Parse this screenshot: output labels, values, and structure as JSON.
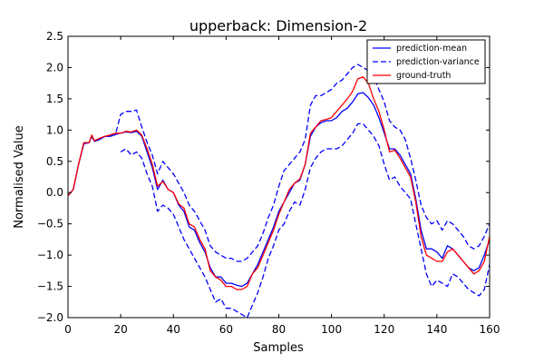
{
  "chart_data": {
    "type": "line",
    "title": "upperback: Dimension-2",
    "xlabel": "Samples",
    "ylabel": "Normalised Value",
    "xlim": [
      0,
      160
    ],
    "ylim": [
      -2.0,
      2.5
    ],
    "xticks": [
      0,
      20,
      40,
      60,
      80,
      100,
      120,
      140,
      160
    ],
    "yticks": [
      -2.0,
      -1.5,
      -1.0,
      -0.5,
      0.0,
      0.5,
      1.0,
      1.5,
      2.0,
      2.5
    ],
    "grid": false,
    "legend_position": "top-right",
    "series": [
      {
        "name": "prediction-mean",
        "color": "#0000ff",
        "style": "solid",
        "x": [
          0,
          2,
          4,
          6,
          8,
          9,
          10,
          12,
          14,
          16,
          18,
          20,
          22,
          24,
          26,
          28,
          30,
          32,
          34,
          36,
          38,
          40,
          42,
          44,
          46,
          48,
          50,
          52,
          54,
          56,
          58,
          60,
          62,
          64,
          66,
          68,
          70,
          72,
          74,
          76,
          78,
          80,
          82,
          84,
          86,
          88,
          90,
          92,
          94,
          96,
          98,
          100,
          102,
          104,
          106,
          108,
          110,
          112,
          114,
          116,
          118,
          120,
          122,
          124,
          126,
          128,
          130,
          132,
          134,
          136,
          138,
          140,
          142,
          144,
          146,
          148,
          150,
          152,
          154,
          156,
          158,
          160
        ],
        "values": [
          -0.05,
          0.05,
          0.45,
          0.78,
          0.8,
          0.9,
          0.82,
          0.85,
          0.9,
          0.9,
          0.93,
          0.95,
          0.97,
          0.96,
          0.98,
          0.9,
          0.65,
          0.4,
          0.05,
          0.2,
          0.05,
          0.0,
          -0.2,
          -0.3,
          -0.55,
          -0.6,
          -0.8,
          -0.95,
          -1.2,
          -1.35,
          -1.35,
          -1.45,
          -1.45,
          -1.48,
          -1.5,
          -1.45,
          -1.3,
          -1.15,
          -0.95,
          -0.75,
          -0.55,
          -0.3,
          -0.15,
          0.0,
          0.15,
          0.2,
          0.45,
          0.9,
          1.05,
          1.12,
          1.15,
          1.15,
          1.2,
          1.3,
          1.35,
          1.45,
          1.58,
          1.6,
          1.52,
          1.4,
          1.2,
          0.95,
          0.7,
          0.7,
          0.6,
          0.45,
          0.3,
          -0.1,
          -0.6,
          -0.9,
          -0.9,
          -0.95,
          -1.05,
          -0.85,
          -0.9,
          -1.0,
          -1.1,
          -1.2,
          -1.25,
          -1.2,
          -1.0,
          -0.75
        ]
      },
      {
        "name": "prediction-variance",
        "color": "#0000ff",
        "style": "dashed",
        "x": [
          0,
          2,
          4,
          6,
          8,
          9,
          10,
          12,
          14,
          16,
          18,
          20,
          22,
          24,
          26,
          28,
          30,
          32,
          34,
          36,
          38,
          40,
          42,
          44,
          46,
          48,
          50,
          52,
          54,
          56,
          58,
          60,
          62,
          64,
          66,
          68,
          70,
          72,
          74,
          76,
          78,
          80,
          82,
          84,
          86,
          88,
          90,
          92,
          94,
          96,
          98,
          100,
          102,
          104,
          106,
          108,
          110,
          112,
          114,
          116,
          118,
          120,
          122,
          124,
          126,
          128,
          130,
          132,
          134,
          136,
          138,
          140,
          142,
          144,
          146,
          148,
          150,
          152,
          154,
          156,
          158,
          160
        ],
        "values": [
          -0.05,
          0.05,
          0.45,
          0.78,
          0.8,
          0.9,
          0.82,
          0.85,
          0.9,
          0.9,
          0.93,
          1.25,
          1.3,
          1.3,
          1.32,
          1.05,
          0.8,
          0.6,
          0.3,
          0.5,
          0.4,
          0.3,
          0.15,
          0.0,
          -0.2,
          -0.3,
          -0.45,
          -0.6,
          -0.85,
          -0.95,
          -1.0,
          -1.05,
          -1.05,
          -1.1,
          -1.1,
          -1.05,
          -0.95,
          -0.85,
          -0.65,
          -0.4,
          -0.2,
          0.1,
          0.35,
          0.45,
          0.55,
          0.65,
          0.85,
          1.4,
          1.55,
          1.55,
          1.6,
          1.65,
          1.75,
          1.8,
          1.9,
          2.0,
          2.05,
          2.0,
          1.95,
          1.85,
          1.65,
          1.45,
          1.15,
          1.05,
          1.0,
          0.85,
          0.55,
          0.2,
          -0.2,
          -0.4,
          -0.5,
          -0.45,
          -0.6,
          -0.45,
          -0.5,
          -0.6,
          -0.7,
          -0.85,
          -0.9,
          -0.85,
          -0.7,
          -0.5
        ]
      },
      {
        "name": "_variance-lower",
        "color": "#0000ff",
        "style": "dashed",
        "x": [
          20,
          22,
          24,
          26,
          28,
          30,
          32,
          34,
          36,
          38,
          40,
          42,
          44,
          46,
          48,
          50,
          52,
          54,
          56,
          58,
          60,
          62,
          64,
          66,
          68,
          70,
          72,
          74,
          76,
          78,
          80,
          82,
          84,
          86,
          88,
          90,
          92,
          94,
          96,
          98,
          100,
          102,
          104,
          106,
          108,
          110,
          112,
          114,
          116,
          118,
          120,
          122,
          124,
          126,
          128,
          130,
          132,
          134,
          136,
          138,
          140,
          142,
          144,
          146,
          148,
          150,
          152,
          154,
          156,
          158,
          160
        ],
        "values": [
          0.65,
          0.7,
          0.6,
          0.65,
          0.55,
          0.3,
          0.1,
          -0.3,
          -0.2,
          -0.25,
          -0.35,
          -0.55,
          -0.75,
          -0.9,
          -1.05,
          -1.2,
          -1.35,
          -1.55,
          -1.75,
          -1.7,
          -1.85,
          -1.85,
          -1.9,
          -1.95,
          -2.0,
          -1.8,
          -1.6,
          -1.35,
          -1.05,
          -0.85,
          -0.6,
          -0.5,
          -0.3,
          -0.15,
          -0.2,
          0.05,
          0.4,
          0.55,
          0.65,
          0.7,
          0.7,
          0.7,
          0.75,
          0.85,
          0.95,
          1.1,
          1.1,
          1.0,
          0.9,
          0.75,
          0.45,
          0.2,
          0.25,
          0.1,
          0.0,
          -0.1,
          -0.5,
          -0.9,
          -1.3,
          -1.5,
          -1.4,
          -1.45,
          -1.5,
          -1.3,
          -1.35,
          -1.45,
          -1.55,
          -1.6,
          -1.65,
          -1.55,
          -1.15
        ]
      },
      {
        "name": "ground-truth",
        "color": "#ff0000",
        "style": "solid",
        "x": [
          0,
          2,
          4,
          6,
          8,
          9,
          10,
          12,
          14,
          16,
          18,
          20,
          22,
          24,
          26,
          28,
          30,
          32,
          34,
          36,
          38,
          40,
          42,
          44,
          46,
          48,
          50,
          52,
          54,
          56,
          58,
          60,
          62,
          64,
          66,
          68,
          70,
          72,
          74,
          76,
          78,
          80,
          82,
          84,
          86,
          88,
          90,
          92,
          94,
          96,
          98,
          100,
          102,
          104,
          106,
          108,
          110,
          112,
          114,
          116,
          118,
          120,
          122,
          124,
          126,
          128,
          130,
          132,
          134,
          136,
          138,
          140,
          142,
          144,
          146,
          148,
          150,
          152,
          154,
          156,
          158,
          160
        ],
        "values": [
          -0.05,
          0.05,
          0.45,
          0.8,
          0.8,
          0.92,
          0.83,
          0.87,
          0.9,
          0.92,
          0.95,
          0.95,
          0.98,
          0.97,
          1.0,
          0.92,
          0.7,
          0.45,
          0.1,
          0.18,
          0.05,
          0.0,
          -0.18,
          -0.25,
          -0.5,
          -0.55,
          -0.75,
          -0.9,
          -1.25,
          -1.35,
          -1.4,
          -1.5,
          -1.5,
          -1.55,
          -1.55,
          -1.5,
          -1.3,
          -1.2,
          -1.0,
          -0.8,
          -0.6,
          -0.35,
          -0.15,
          0.05,
          0.15,
          0.22,
          0.45,
          0.95,
          1.05,
          1.15,
          1.17,
          1.2,
          1.3,
          1.4,
          1.5,
          1.62,
          1.82,
          1.85,
          1.75,
          1.5,
          1.3,
          1.0,
          0.65,
          0.68,
          0.55,
          0.4,
          0.25,
          -0.15,
          -0.7,
          -1.0,
          -1.05,
          -1.1,
          -1.1,
          -0.95,
          -0.9,
          -1.0,
          -1.1,
          -1.2,
          -1.3,
          -1.25,
          -1.1,
          -0.7
        ]
      }
    ]
  }
}
